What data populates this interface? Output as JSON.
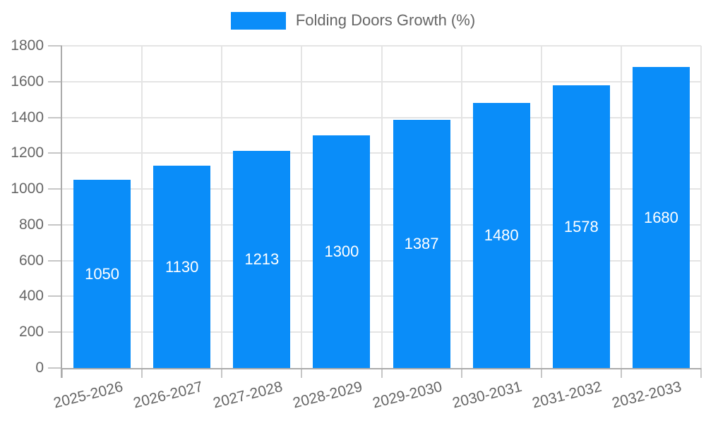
{
  "legend": {
    "position": "top",
    "swatch_color": "#0a8df9"
  },
  "chart_data": {
    "type": "bar",
    "title": "",
    "xlabel": "",
    "ylabel": "",
    "series_name": "Folding Doors Growth (%)",
    "categories": [
      "2025-2026",
      "2026-2027",
      "2027-2028",
      "2028-2029",
      "2029-2030",
      "2030-2031",
      "2031-2032",
      "2032-2033"
    ],
    "values": [
      1050,
      1130,
      1213,
      1300,
      1387,
      1480,
      1578,
      1680
    ],
    "ylim": [
      0,
      1800
    ],
    "ytick_step": 200,
    "ytick_labels": [
      "0",
      "200",
      "400",
      "600",
      "800",
      "1000",
      "1200",
      "1400",
      "1600",
      "1800"
    ],
    "grid": true,
    "legend_position": "top",
    "bar_color": "#0a8df9",
    "value_label_color": "#ffffff",
    "axis_text_color": "#666666",
    "gridline_color": "#e4e4e4",
    "axis_line_color": "#ababab"
  }
}
